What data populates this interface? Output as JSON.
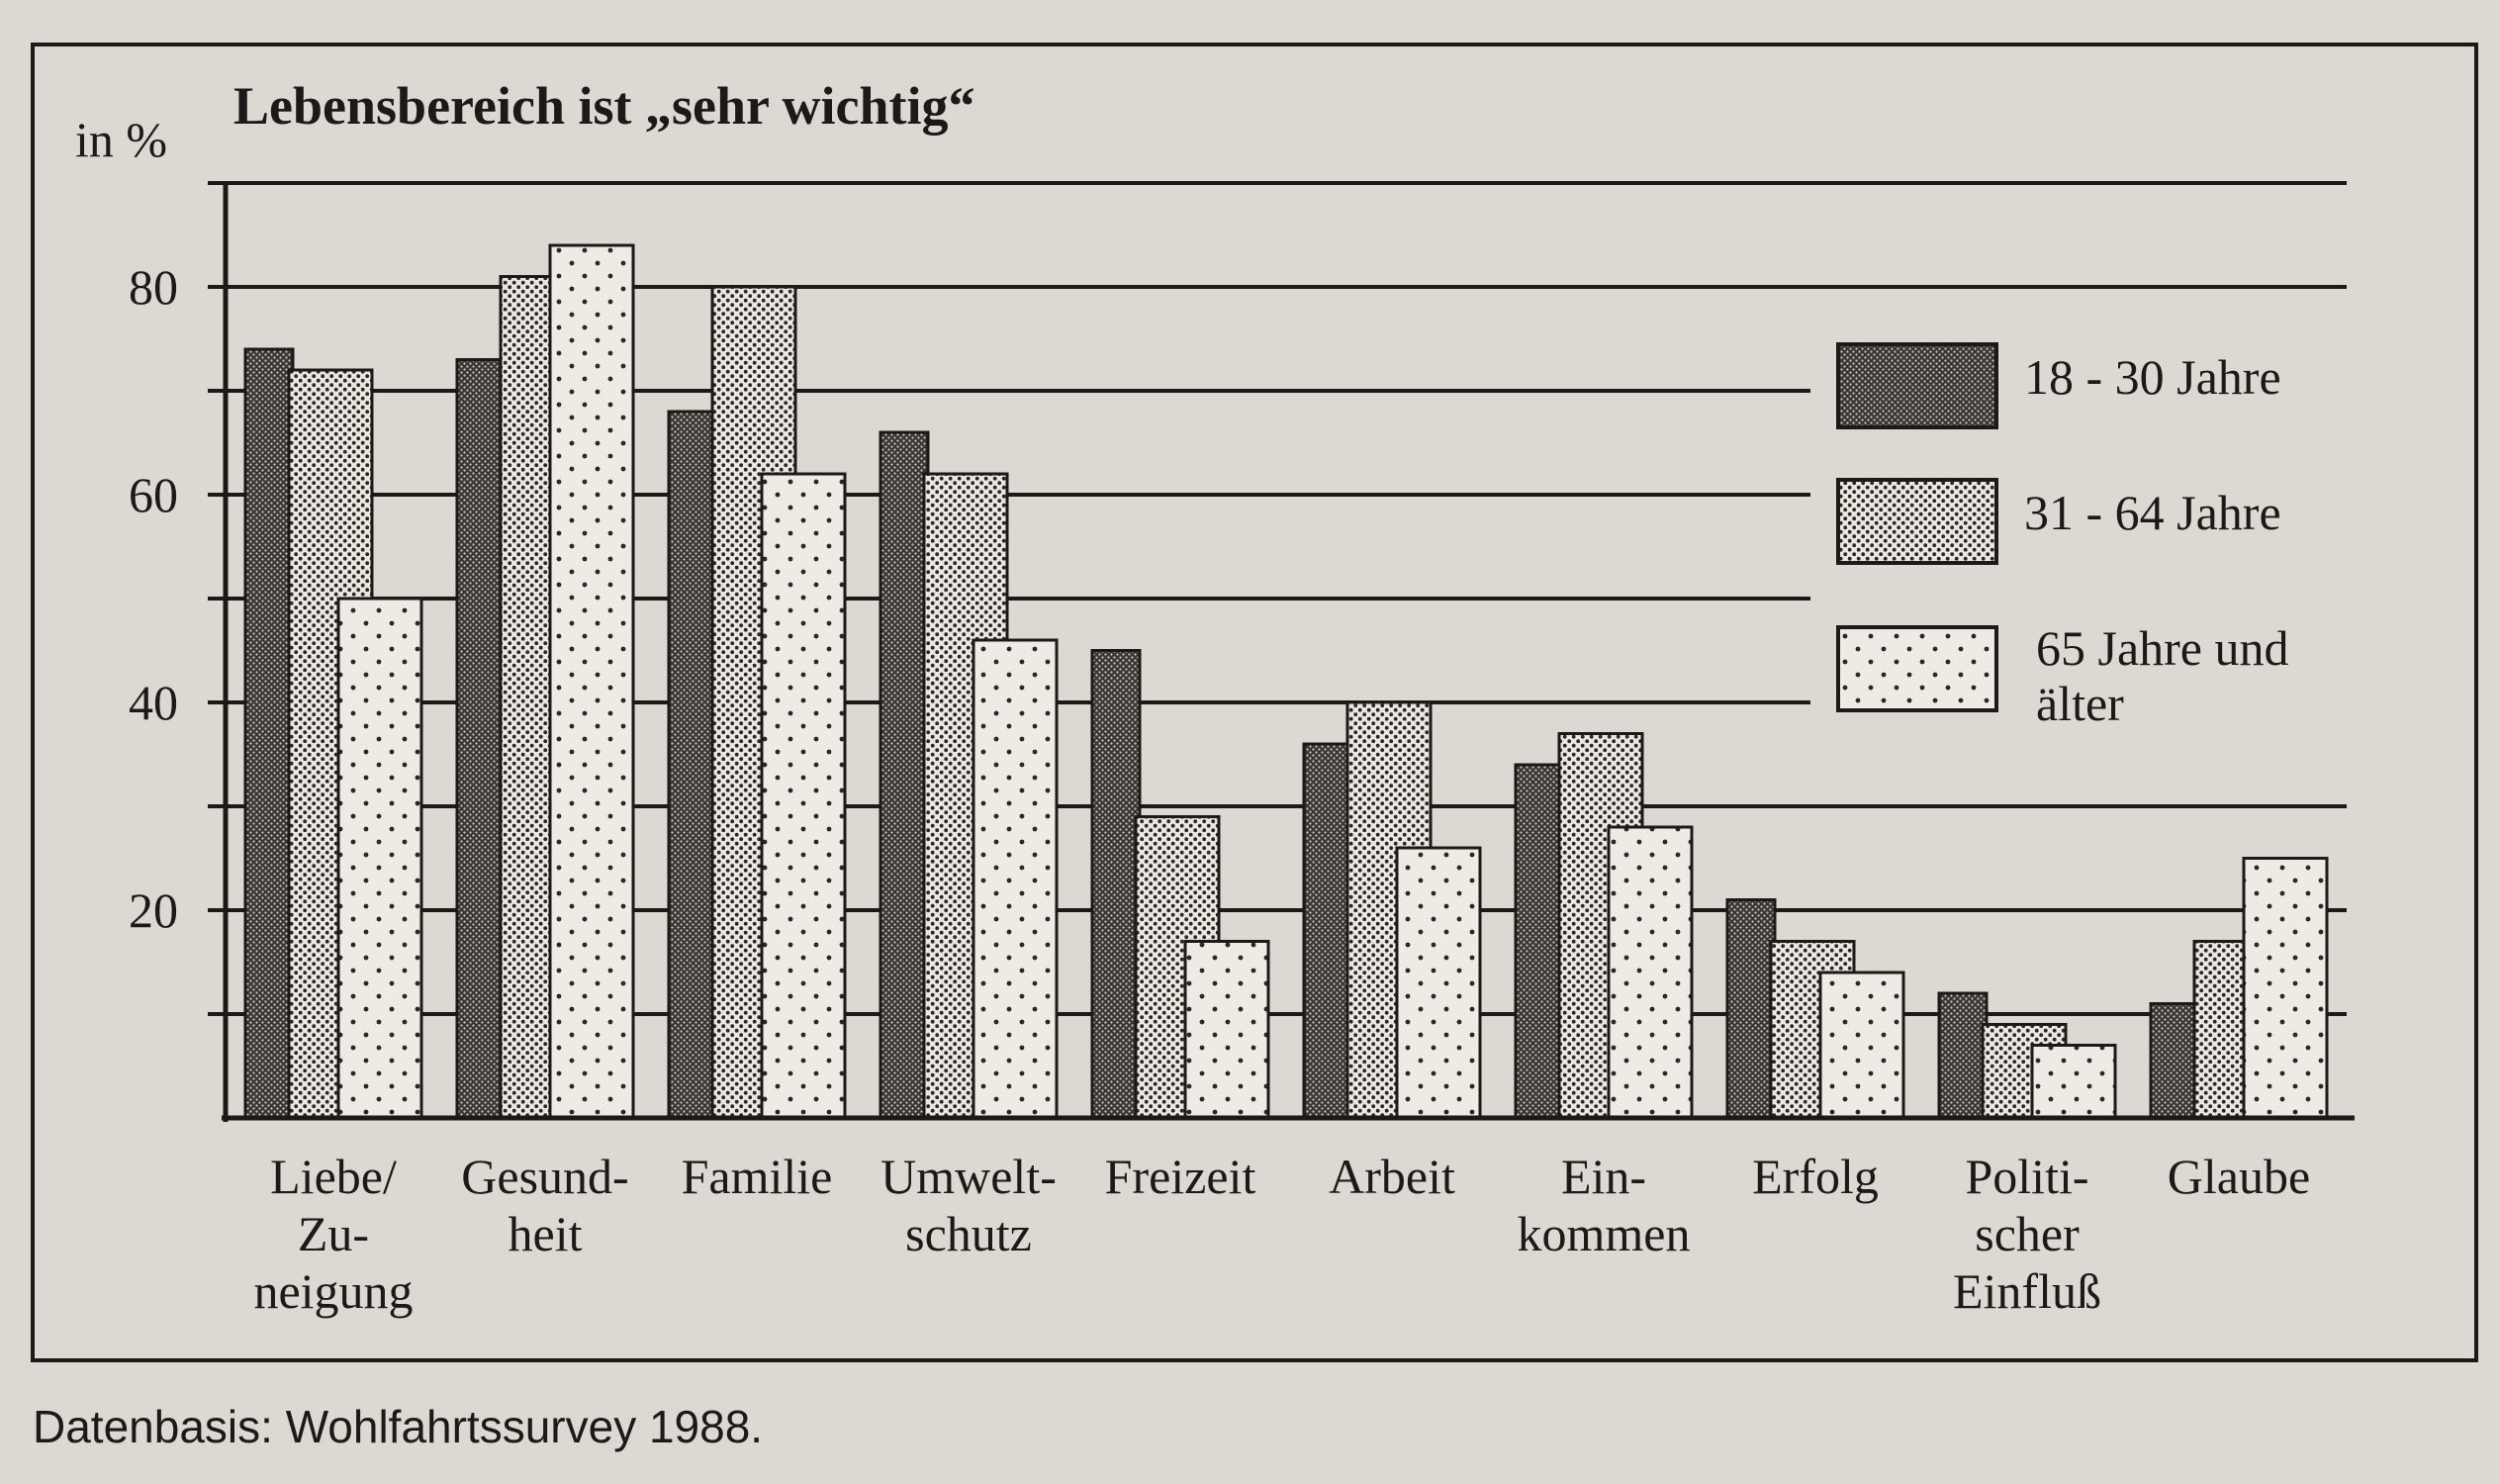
{
  "chart_data": {
    "type": "bar",
    "title": "Lebensbereich ist „sehr wichtig“",
    "ylabel": "in %",
    "xlabel": "",
    "ylim": [
      0,
      90
    ],
    "yticks": [
      0,
      10,
      20,
      30,
      40,
      50,
      60,
      70,
      80,
      90
    ],
    "ytick_labels": [
      {
        "value": 20,
        "label": "20"
      },
      {
        "value": 40,
        "label": "40"
      },
      {
        "value": 60,
        "label": "60"
      },
      {
        "value": 80,
        "label": "80"
      }
    ],
    "categories": [
      [
        "Liebe/",
        "Zu-",
        "neigung"
      ],
      [
        "Gesund-",
        "heit"
      ],
      [
        "Familie"
      ],
      [
        "Umwelt-",
        "schutz"
      ],
      [
        "Freizeit"
      ],
      [
        "Arbeit"
      ],
      [
        "Ein-",
        "kommen"
      ],
      [
        "Erfolg"
      ],
      [
        "Politi-",
        "scher",
        "Einfluß"
      ],
      [
        "Glaube"
      ]
    ],
    "series": [
      {
        "name": "18 - 30 Jahre",
        "pattern": "dark",
        "values": [
          74,
          73,
          68,
          66,
          45,
          36,
          34,
          21,
          12,
          11
        ]
      },
      {
        "name": "31 - 64 Jahre",
        "pattern": "medium",
        "values": [
          72,
          81,
          80,
          62,
          29,
          40,
          37,
          17,
          9,
          17
        ]
      },
      {
        "name": "65 Jahre und älter",
        "name_lines": [
          "65 Jahre und",
          "älter"
        ],
        "pattern": "light",
        "values": [
          50,
          84,
          62,
          46,
          17,
          26,
          28,
          14,
          7,
          25
        ]
      }
    ],
    "grid": true,
    "legend": "right"
  },
  "source_note": "Datenbasis: Wohlfahrtssurvey 1988.",
  "colors": {
    "page": "#ddd8d1",
    "panel": "#ddd8d1",
    "ink": "#1c1a18",
    "bar_fill": "#efebe4"
  }
}
